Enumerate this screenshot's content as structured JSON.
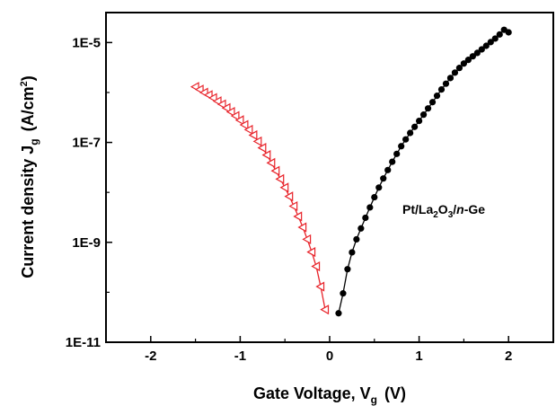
{
  "chart_data": {
    "type": "scatter",
    "xlabel": {
      "main": "Gate Voltage, V",
      "sub": "g",
      "unit": "(V)"
    },
    "ylabel": {
      "main": "Current density J",
      "sub": "g",
      "unit_pre": "(A/cm",
      "unit_sup": "2",
      "unit_post": ")"
    },
    "xlim": [
      -2.5,
      2.5
    ],
    "ylim_log10": [
      -11,
      -4.4
    ],
    "y_scale": "log",
    "grid": false,
    "x_ticks": [
      {
        "value": -2,
        "label": "-2"
      },
      {
        "value": -1,
        "label": "-1"
      },
      {
        "value": 0,
        "label": "0"
      },
      {
        "value": 1,
        "label": "1"
      },
      {
        "value": 2,
        "label": "2"
      }
    ],
    "y_ticks": [
      {
        "value": 1e-11,
        "label": "1E-11"
      },
      {
        "value": 1e-09,
        "label": "1E-9"
      },
      {
        "value": 1e-07,
        "label": "1E-7"
      },
      {
        "value": 1e-05,
        "label": "1E-5"
      }
    ],
    "annotation": {
      "pre": "Pt/La",
      "sub1": "2",
      "mid": "O",
      "sub2": "3",
      "slash": "/",
      "ital": "n",
      "post": "-Ge"
    },
    "series": [
      {
        "marker": "triangle-left-open",
        "color": "#e8232a",
        "x": [
          -1.5,
          -1.45,
          -1.4,
          -1.35,
          -1.3,
          -1.25,
          -1.2,
          -1.15,
          -1.1,
          -1.05,
          -1.0,
          -0.95,
          -0.9,
          -0.85,
          -0.8,
          -0.75,
          -0.7,
          -0.65,
          -0.6,
          -0.55,
          -0.5,
          -0.45,
          -0.4,
          -0.35,
          -0.3,
          -0.25,
          -0.2,
          -0.15,
          -0.1,
          -0.05
        ],
        "y": [
          1.3e-06,
          1.15e-06,
          1e-06,
          8.9e-07,
          7.8e-07,
          6.7e-07,
          5.8e-07,
          4.9e-07,
          4.1e-07,
          3.4e-07,
          2.8e-07,
          2.25e-07,
          1.8e-07,
          1.4e-07,
          1.05e-07,
          7.8e-08,
          5.6e-08,
          3.9e-08,
          2.7e-08,
          1.85e-08,
          1.25e-08,
          8.3e-09,
          5.3e-09,
          3.3e-09,
          2e-09,
          1.15e-09,
          6.4e-10,
          3.3e-10,
          1.3e-10,
          4.5e-11
        ]
      },
      {
        "marker": "circle-filled",
        "color": "#000000",
        "x": [
          0.1,
          0.15,
          0.2,
          0.25,
          0.3,
          0.35,
          0.4,
          0.45,
          0.5,
          0.55,
          0.6,
          0.65,
          0.7,
          0.75,
          0.8,
          0.85,
          0.9,
          0.95,
          1.0,
          1.05,
          1.1,
          1.15,
          1.2,
          1.25,
          1.3,
          1.35,
          1.4,
          1.45,
          1.5,
          1.55,
          1.6,
          1.65,
          1.7,
          1.75,
          1.8,
          1.85,
          1.9,
          1.95,
          2.0
        ],
        "y": [
          3.8e-11,
          9.5e-11,
          2.9e-10,
          6.3e-10,
          1.15e-09,
          1.9e-09,
          3.1e-09,
          5e-09,
          8e-09,
          1.25e-08,
          1.9e-08,
          2.8e-08,
          4.1e-08,
          5.9e-08,
          8.4e-08,
          1.15e-07,
          1.55e-07,
          2.05e-07,
          2.7e-07,
          3.6e-07,
          4.8e-07,
          6.4e-07,
          8.6e-07,
          1.15e-06,
          1.5e-06,
          1.95e-06,
          2.5e-06,
          3.1e-06,
          3.8e-06,
          4.5e-06,
          5.3e-06,
          6.2e-06,
          7.3e-06,
          8.6e-06,
          1.02e-05,
          1.2e-05,
          1.45e-05,
          1.8e-05,
          1.6e-05
        ]
      }
    ]
  }
}
